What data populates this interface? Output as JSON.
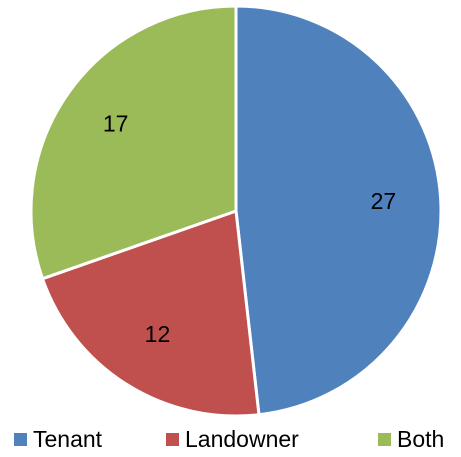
{
  "chart_data": {
    "type": "pie",
    "categories": [
      "Tenant",
      "Landowner",
      "Both"
    ],
    "values": [
      27,
      12,
      17
    ],
    "colors": [
      "#4f81bd",
      "#c0504d",
      "#9bbb59"
    ],
    "legend": "bottom"
  }
}
